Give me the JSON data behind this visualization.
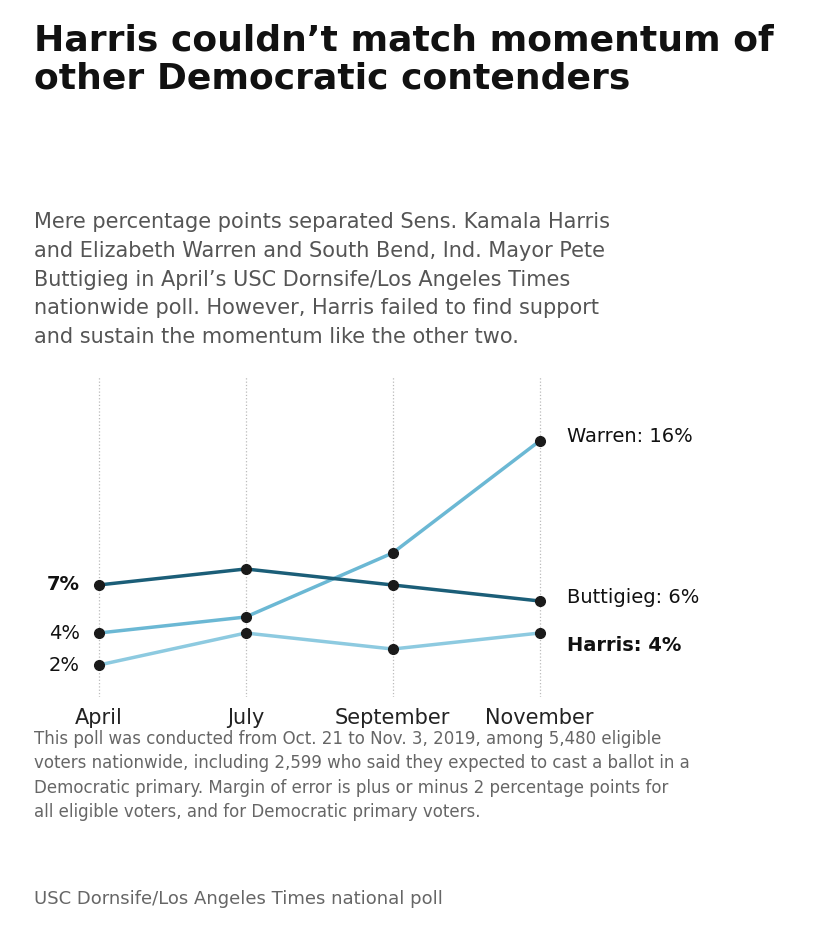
{
  "title": "Harris couldn’t match momentum of\nother Democratic contenders",
  "subtitle": "Mere percentage points separated Sens. Kamala Harris\nand Elizabeth Warren and South Bend, Ind. Mayor Pete\nButtigieg in April’s USC Dornsife/Los Angeles Times\nnationwide poll. However, Harris failed to find support\nand sustain the momentum like the other two.",
  "footnote": "This poll was conducted from Oct. 21 to Nov. 3, 2019, among 5,480 eligible\nvoters nationwide, including 2,599 who said they expected to cast a ballot in a\nDemocratic primary. Margin of error is plus or minus 2 percentage points for\nall eligible voters, and for Democratic primary voters.",
  "source": "USC Dornsife/Los Angeles Times national poll",
  "x_labels": [
    "April",
    "July",
    "September",
    "November"
  ],
  "x_values": [
    0,
    1,
    2,
    3
  ],
  "warren": [
    4,
    5,
    9,
    16
  ],
  "buttigieg": [
    7,
    8,
    7,
    6
  ],
  "harris": [
    2,
    4,
    3,
    4
  ],
  "warren_color": "#6bb8d4",
  "buttigieg_color": "#1b5e78",
  "harris_color": "#8dcae0",
  "dot_color_dark": "#1a1a1a",
  "warren_label": "Warren: 16%",
  "buttigieg_label": "Buttigieg: 6%",
  "harris_label": "Harris: 4%",
  "ylim": [
    0,
    20
  ],
  "background_color": "#ffffff",
  "title_fontsize": 26,
  "subtitle_fontsize": 15,
  "axis_label_fontsize": 15,
  "line_label_fontsize": 14,
  "footnote_fontsize": 12,
  "source_fontsize": 13
}
